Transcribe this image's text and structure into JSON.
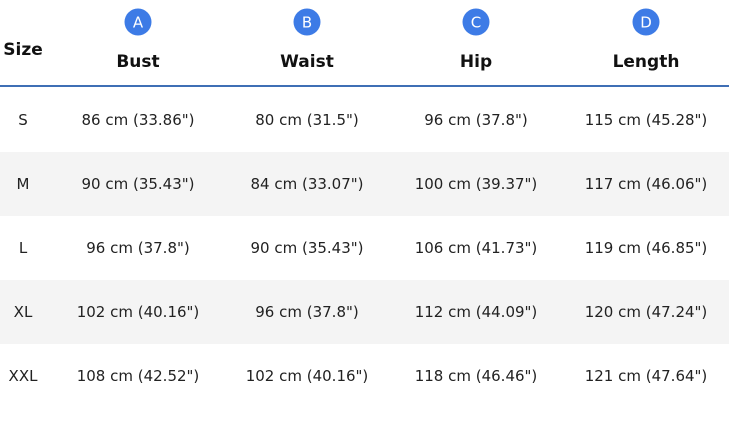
{
  "table": {
    "header": {
      "size": "Size",
      "columns": [
        {
          "badge": "A",
          "label": "Bust"
        },
        {
          "badge": "B",
          "label": "Waist"
        },
        {
          "badge": "C",
          "label": "Hip"
        },
        {
          "badge": "D",
          "label": "Length"
        }
      ]
    },
    "rows": [
      [
        "S",
        "86 cm (33.86\")",
        "80 cm (31.5\")",
        "96 cm (37.8\")",
        "115 cm (45.28\")"
      ],
      [
        "M",
        "90 cm (35.43\")",
        "84 cm (33.07\")",
        "100 cm (39.37\")",
        "117 cm (46.06\")"
      ],
      [
        "L",
        "96 cm (37.8\")",
        "90 cm (35.43\")",
        "106 cm (41.73\")",
        "119 cm (46.85\")"
      ],
      [
        "XL",
        "102 cm (40.16\")",
        "96 cm (37.8\")",
        "112 cm (44.09\")",
        "120 cm (47.24\")"
      ],
      [
        "XXL",
        "108 cm (42.52\")",
        "102 cm (40.16\")",
        "118 cm (46.46\")",
        "121 cm (47.64\")"
      ]
    ]
  }
}
